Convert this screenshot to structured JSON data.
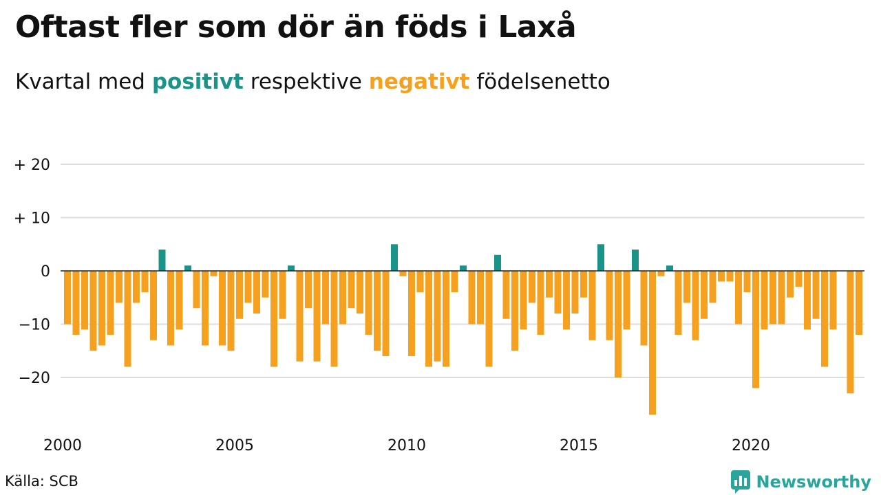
{
  "title": "Oftast fler som dör än föds i Laxå",
  "subtitle": {
    "prefix": "Kvartal med",
    "positive_word": "positivt",
    "middle": "respektive",
    "negative_word": "negativt",
    "suffix": "födelsenetto"
  },
  "source": "Källa: SCB",
  "brand": {
    "name": "Newsworthy",
    "icon": "newsworthy-chart-icon"
  },
  "colors": {
    "positive": "#1a9488",
    "negative": "#f5a11f",
    "grid": "#dddddd",
    "baseline": "#222222",
    "brand": "#2aa59b"
  },
  "chart_data": {
    "type": "bar",
    "unit": "quarter",
    "start_year": 2000,
    "start_quarter": 1,
    "values": [
      -10,
      -12,
      -11,
      -15,
      -14,
      -12,
      -6,
      -18,
      -6,
      -4,
      -13,
      4,
      -14,
      -11,
      1,
      -7,
      -14,
      -1,
      -14,
      -15,
      -9,
      -6,
      -8,
      -5,
      -18,
      -9,
      1,
      -17,
      -7,
      -17,
      -10,
      -18,
      -10,
      -7,
      -8,
      -12,
      -15,
      -16,
      5,
      -1,
      -16,
      -4,
      -18,
      -17,
      -18,
      -4,
      1,
      -10,
      -10,
      -18,
      3,
      -9,
      -15,
      -11,
      -6,
      -12,
      -5,
      -8,
      -11,
      -8,
      -5,
      -13,
      5,
      -13,
      -20,
      -11,
      4,
      -14,
      -27,
      -1,
      1,
      -12,
      -6,
      -13,
      -9,
      -6,
      -2,
      -2,
      -10,
      -4,
      -22,
      -11,
      -10,
      -10,
      -5,
      -3,
      -11,
      -9,
      -18,
      -11,
      0,
      -23,
      -12
    ],
    "ylim": [
      -30,
      20
    ],
    "yticks": [
      20,
      10,
      0,
      -10,
      -20
    ],
    "ytick_labels": [
      "+ 20",
      "+ 10",
      "0",
      "−10",
      "−20"
    ],
    "xtick_labels": [
      "2000",
      "2005",
      "2010",
      "2015",
      "2020"
    ],
    "xtick_years": [
      2000,
      2005,
      2010,
      2015,
      2020
    ],
    "grid": true,
    "legend": "in subtitle"
  }
}
